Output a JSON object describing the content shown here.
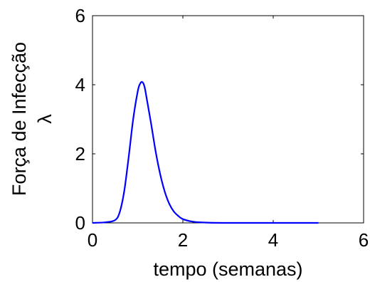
{
  "chart_data": {
    "type": "line",
    "title": "",
    "xlabel": "tempo (semanas)",
    "ylabel_line1": "Força de Infecção",
    "ylabel_line2": "λ",
    "xlim": [
      0,
      6
    ],
    "ylim": [
      0,
      6
    ],
    "x_ticks": [
      0,
      2,
      4,
      6
    ],
    "y_ticks": [
      0,
      2,
      4,
      6
    ],
    "x_tick_labels": [
      "0",
      "2",
      "4",
      "6"
    ],
    "y_tick_labels": [
      "0",
      "2",
      "4",
      "6"
    ],
    "grid": false,
    "line_color": "#0000ff",
    "series": [
      {
        "x": [
          0,
          0.3,
          0.5,
          0.6,
          0.7,
          0.8,
          0.9,
          1.0,
          1.05,
          1.1,
          1.15,
          1.2,
          1.3,
          1.4,
          1.5,
          1.6,
          1.7,
          1.8,
          1.9,
          2.0,
          2.2,
          2.4,
          2.6,
          3.0,
          4.0,
          5.0
        ],
        "y": [
          0,
          0.02,
          0.08,
          0.3,
          0.9,
          1.9,
          3.0,
          3.8,
          4.02,
          4.08,
          3.95,
          3.6,
          2.85,
          2.05,
          1.4,
          0.9,
          0.55,
          0.33,
          0.2,
          0.11,
          0.04,
          0.015,
          0.005,
          0.0,
          0.0,
          0.0
        ]
      }
    ]
  }
}
